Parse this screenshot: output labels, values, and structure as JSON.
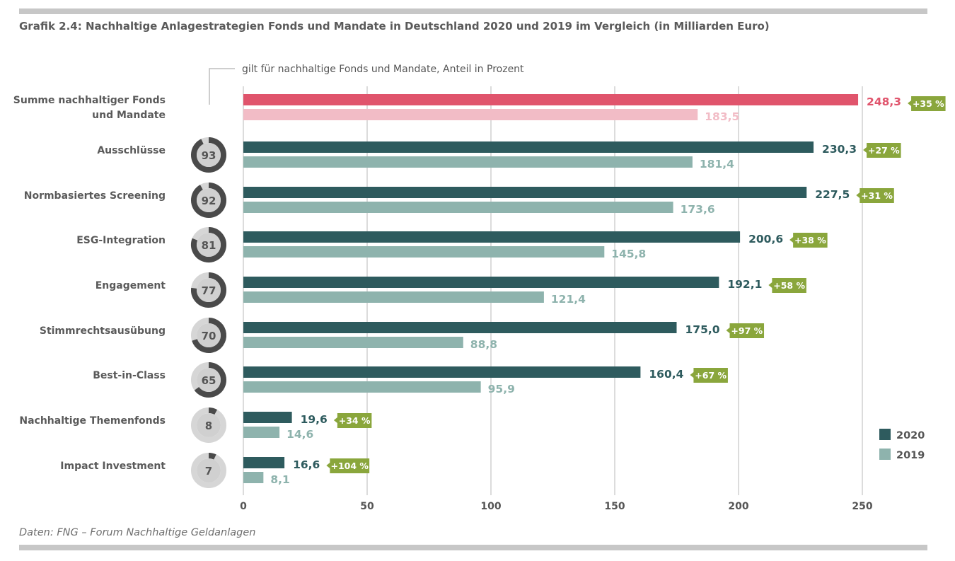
{
  "title": "Grafik 2.4: Nachhaltige Anlagestrategien Fonds und Mandate in Deutschland 2020 und 2019 im Vergleich (in Milliarden Euro)",
  "source": "Daten: FNG – Forum Nachhaltige Geldanlagen",
  "note": "gilt für nachhaltige Fonds und Mandate, Anteil in Prozent",
  "colors": {
    "bar_2020": "#2e5b5e",
    "bar_2019": "#8eb3ad",
    "sum_2020": "#e0546c",
    "sum_2019": "#f2bcc6",
    "badge": "#8aa63c",
    "grid": "#c4c4c4",
    "donut_dark": "#4a4a4a",
    "donut_light": "#d6d6d6"
  },
  "chart_data": {
    "type": "bar",
    "orientation": "horizontal",
    "xlim": [
      0,
      250
    ],
    "xticks": [
      "0",
      "50",
      "100",
      "150",
      "200",
      "250"
    ],
    "grid": true,
    "legend_position": "bottom-right",
    "legend": [
      {
        "label": "2020",
        "color": "#2e5b5e"
      },
      {
        "label": "2019",
        "color": "#8eb3ad"
      }
    ],
    "categories": [
      "Summe nachhaltiger Fonds und Mandate",
      "Ausschlüsse",
      "Normbasiertes Screening",
      "ESG-Integration",
      "Engagement",
      "Stimmrechtsausübung",
      "Best-in-Class",
      "Nachhaltige Themenfonds",
      "Impact Investment"
    ],
    "series": [
      {
        "name": "2020",
        "values": [
          248.3,
          230.3,
          227.5,
          200.6,
          192.1,
          175.0,
          160.4,
          19.6,
          16.6
        ],
        "labels": [
          "248,3",
          "230,3",
          "227,5",
          "200,6",
          "192,1",
          "175,0",
          "160,4",
          "19,6",
          "16,6"
        ]
      },
      {
        "name": "2019",
        "values": [
          183.5,
          181.4,
          173.6,
          145.8,
          121.4,
          88.8,
          95.9,
          14.6,
          8.1
        ],
        "labels": [
          "183,5",
          "181,4",
          "173,6",
          "145,8",
          "121,4",
          "88,8",
          "95,9",
          "14,6",
          "8,1"
        ]
      }
    ],
    "growth_labels": [
      "+35 %",
      "+27 %",
      "+31 %",
      "+38 %",
      "+58 %",
      "+97 %",
      "+67 %",
      "+34 %",
      "+104 %"
    ],
    "share_percent": [
      null,
      93,
      92,
      81,
      77,
      70,
      65,
      8,
      7
    ]
  }
}
